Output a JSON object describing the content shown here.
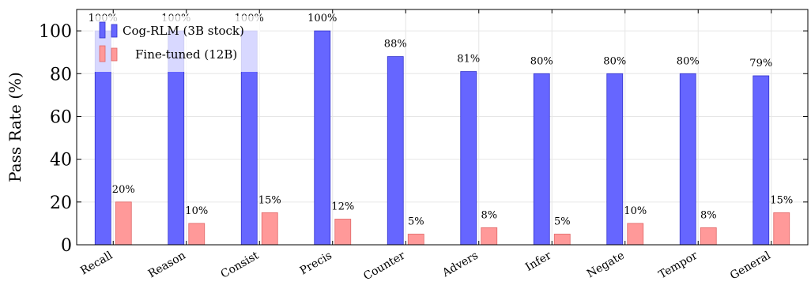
{
  "chart_data": {
    "type": "bar",
    "ylabel": "Pass Rate (%)",
    "xlabel": "",
    "ylim": [
      0,
      110
    ],
    "yticks": [
      0,
      20,
      40,
      60,
      80,
      100
    ],
    "grid": true,
    "legend_position": "top-left",
    "categories": [
      "Recall",
      "Reason",
      "Consist",
      "Precis",
      "Counter",
      "Advers",
      "Infer",
      "Negate",
      "Tempor",
      "General"
    ],
    "series": [
      {
        "name": "Cog-RLM (3B stock)",
        "color": "#6666ff",
        "stroke": "#3333cc",
        "values": [
          100,
          100,
          100,
          100,
          88,
          81,
          80,
          80,
          80,
          79
        ],
        "labels": [
          "100%",
          "100%",
          "100%",
          "100%",
          "88%",
          "81%",
          "80%",
          "80%",
          "80%",
          "79%"
        ]
      },
      {
        "name": "Fine-tuned (12B)",
        "color": "#ff9999",
        "stroke": "#e06666",
        "values": [
          20,
          10,
          15,
          12,
          5,
          8,
          5,
          10,
          8,
          15
        ],
        "labels": [
          "20%",
          "10%",
          "15%",
          "12%",
          "5%",
          "8%",
          "5%",
          "10%",
          "8%",
          "15%"
        ]
      }
    ]
  }
}
